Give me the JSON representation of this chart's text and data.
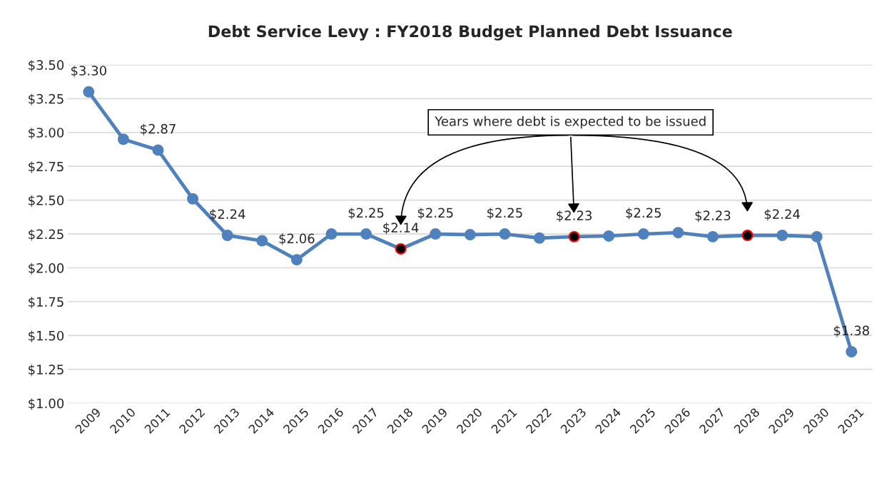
{
  "chart_data": {
    "type": "line",
    "title": "Debt Service Levy : FY2018 Budget Planned Debt Issuance",
    "categories": [
      "2009",
      "2010",
      "2011",
      "2012",
      "2013",
      "2014",
      "2015",
      "2016",
      "2017",
      "2018",
      "2019",
      "2020",
      "2021",
      "2022",
      "2023",
      "2024",
      "2025",
      "2026",
      "2027",
      "2028",
      "2029",
      "2030",
      "2031"
    ],
    "series": [
      {
        "color": "#4f81bd",
        "values": [
          3.3,
          2.95,
          2.87,
          2.51,
          2.24,
          2.2,
          2.06,
          2.25,
          2.25,
          2.14,
          2.25,
          2.245,
          2.25,
          2.22,
          2.23,
          2.235,
          2.25,
          2.26,
          2.23,
          2.24,
          2.24,
          2.23,
          1.38
        ],
        "colors": [
          "#4f81bd",
          "#4f81bd",
          "#4f81bd",
          "#4f81bd",
          "#4f81bd",
          "#4f81bd",
          "#4f81bd",
          "#4f81bd",
          "#4f81bd",
          "#000000",
          "#4f81bd",
          "#4f81bd",
          "#4f81bd",
          "#4f81bd",
          "#000000",
          "#4f81bd",
          "#4f81bd",
          "#4f81bd",
          "#4f81bd",
          "#000000",
          "#4f81bd",
          "#4f81bd",
          "#4f81bd"
        ],
        "value_labels": [
          "$3.30",
          null,
          "$2.87",
          null,
          "$2.24",
          null,
          "$2.06",
          null,
          "$2.25",
          "$2.14",
          "$2.25",
          null,
          "$2.25",
          null,
          "$2.23",
          null,
          "$2.25",
          null,
          "$2.23",
          null,
          "$2.24",
          null,
          "$1.38"
        ]
      }
    ],
    "ylim": [
      1.0,
      3.5
    ],
    "yticks": [
      {
        "value": 1.0,
        "label": "$1.00"
      },
      {
        "value": 1.25,
        "label": "$1.25"
      },
      {
        "value": 1.5,
        "label": "$1.50"
      },
      {
        "value": 1.75,
        "label": "$1.75"
      },
      {
        "value": 2.0,
        "label": "$2.00"
      },
      {
        "value": 2.25,
        "label": "$2.25"
      },
      {
        "value": 2.5,
        "label": "$2.50"
      },
      {
        "value": 2.75,
        "label": "$2.75"
      },
      {
        "value": 3.0,
        "label": "$3.00"
      },
      {
        "value": 3.25,
        "label": "$3.25"
      },
      {
        "value": 3.5,
        "label": "$3.50"
      }
    ],
    "grid": "y",
    "marker": "circle",
    "line_style": "solid",
    "annotations": [
      "Years where debt is expected to be issued"
    ]
  }
}
